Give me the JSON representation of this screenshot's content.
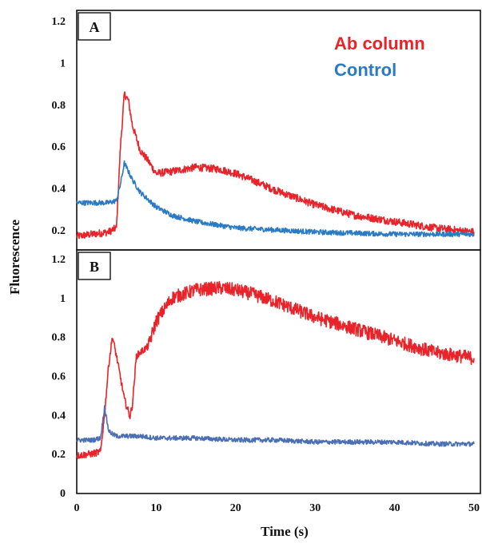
{
  "chart_data": {
    "type": "line",
    "ylabel": "Fluorescence",
    "xlabel": "Time (s)",
    "xlim": [
      0,
      50
    ],
    "x_ticks": [
      "0",
      "10",
      "20",
      "30",
      "40",
      "50"
    ],
    "colors": {
      "ab_column": "#e8232a",
      "control_a": "#2a7bc4",
      "control_b": "#4a6fb5"
    },
    "legend": {
      "placement": "top-right",
      "entries": [
        "Ab column",
        "Control"
      ]
    },
    "panels": [
      {
        "label": "A",
        "ylim": [
          0.15,
          1.25
        ],
        "y_ticks": [
          "0.2",
          "0.4",
          "0.6",
          "0.8",
          "1",
          "1.2"
        ],
        "series": [
          {
            "name": "Ab column",
            "x": [
              0,
              2,
              4,
              5,
              5.5,
              6,
              6.5,
              7,
              8,
              9,
              10,
              12,
              15,
              18,
              20,
              22,
              25,
              30,
              35,
              40,
              45,
              50
            ],
            "y": [
              0.17,
              0.18,
              0.19,
              0.21,
              0.6,
              0.85,
              0.82,
              0.7,
              0.58,
              0.53,
              0.47,
              0.48,
              0.5,
              0.49,
              0.47,
              0.44,
              0.39,
              0.32,
              0.27,
              0.24,
              0.21,
              0.19
            ]
          },
          {
            "name": "Control",
            "x": [
              0,
              2,
              4,
              5,
              5.5,
              6,
              6.5,
              7,
              8,
              10,
              12,
              15,
              20,
              25,
              30,
              35,
              40,
              45,
              50
            ],
            "y": [
              0.33,
              0.33,
              0.33,
              0.34,
              0.42,
              0.52,
              0.48,
              0.44,
              0.38,
              0.31,
              0.27,
              0.24,
              0.21,
              0.2,
              0.19,
              0.185,
              0.18,
              0.18,
              0.18
            ]
          }
        ]
      },
      {
        "label": "B",
        "ylim": [
          0,
          1.25
        ],
        "y_ticks": [
          "0",
          "0.2",
          "0.4",
          "0.6",
          "0.8",
          "1",
          "1.2"
        ],
        "series": [
          {
            "name": "Ab column",
            "x": [
              0,
              2,
              3,
              3.5,
              4,
              4.5,
              5,
              6,
              6.7,
              7,
              7.5,
              8,
              9,
              10,
              12,
              15,
              18,
              20,
              22,
              25,
              30,
              35,
              40,
              45,
              50
            ],
            "y": [
              0.19,
              0.2,
              0.21,
              0.4,
              0.65,
              0.8,
              0.7,
              0.48,
              0.39,
              0.45,
              0.7,
              0.72,
              0.75,
              0.88,
              1.0,
              1.04,
              1.05,
              1.04,
              1.02,
              0.98,
              0.9,
              0.84,
              0.78,
              0.72,
              0.69
            ]
          },
          {
            "name": "Control",
            "x": [
              0,
              2,
              3,
              3.5,
              4,
              4.5,
              5,
              6,
              8,
              10,
              15,
              20,
              25,
              30,
              35,
              40,
              45,
              50
            ],
            "y": [
              0.27,
              0.27,
              0.28,
              0.44,
              0.32,
              0.3,
              0.29,
              0.29,
              0.29,
              0.28,
              0.28,
              0.27,
              0.27,
              0.26,
              0.26,
              0.26,
              0.25,
              0.25
            ]
          }
        ]
      }
    ]
  }
}
